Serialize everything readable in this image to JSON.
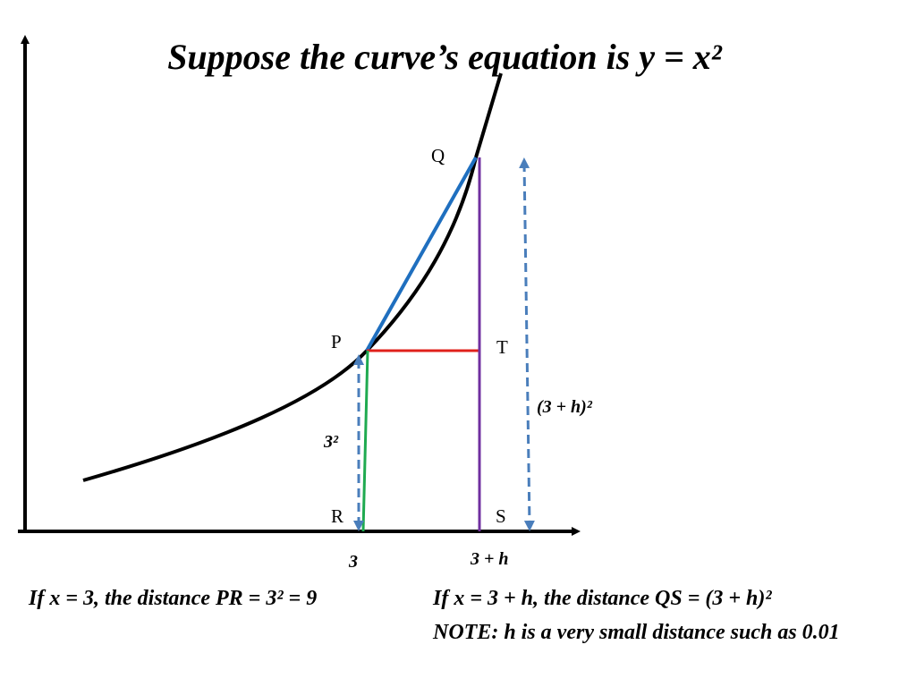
{
  "title": "Suppose the curve’s equation is y = x²",
  "points": {
    "Q": "Q",
    "P": "P",
    "T": "T",
    "R": "R",
    "S": "S"
  },
  "labels": {
    "pr_height": "3²",
    "qs_height": "(3 + h)²",
    "x_r": "3",
    "x_s": "3 + h"
  },
  "notes": {
    "left": "If x = 3, the distance PR = 3² = 9",
    "right": "If x = 3 + h, the distance QS = (3 + h)²",
    "note": "NOTE:  h is a very small distance such as 0.01"
  }
}
